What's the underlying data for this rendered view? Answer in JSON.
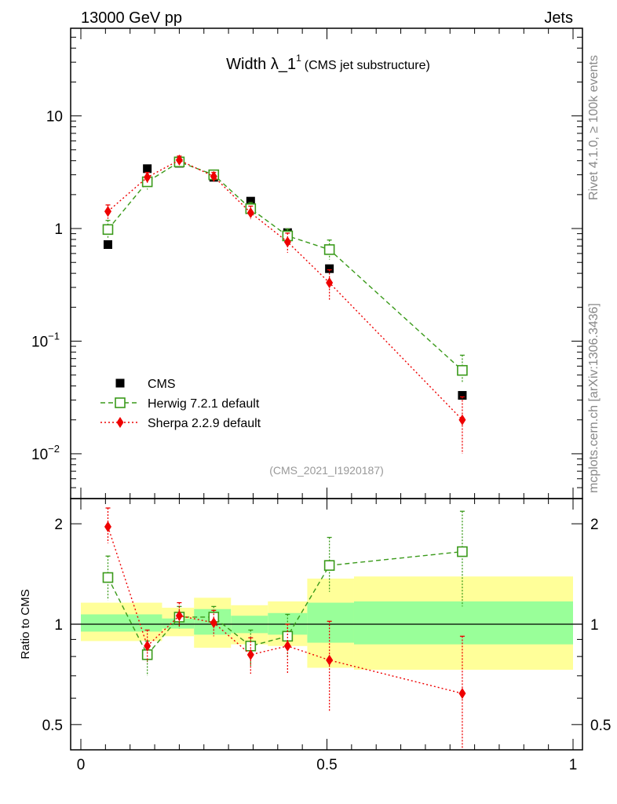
{
  "header": {
    "left": "13000 GeV pp",
    "right": "Jets"
  },
  "side_labels": {
    "rivet": "Rivet 4.1.0, ≥ 100k events",
    "mcplots": "mcplots.cern.ch [arXiv:1306.3436]"
  },
  "colors": {
    "data": "#000000",
    "herwig": "#3a9a1a",
    "sherpa": "#ee0000",
    "band_outer": "#ffff99",
    "band_inner": "#99ff99",
    "watermark": "#999999"
  },
  "chart_data": [
    {
      "type": "scatter",
      "panel": "main",
      "title": "Width λ_1",
      "title_sup": "1",
      "title_suffix": "(CMS jet substructure)",
      "watermark": "(CMS_2021_I1920187)",
      "xlim": [
        0,
        1
      ],
      "ylim": [
        0.004,
        60
      ],
      "yscale": "log",
      "yticks": [
        {
          "value": 10,
          "label": "10",
          "sup": ""
        },
        {
          "value": 1,
          "label": "1",
          "sup": ""
        },
        {
          "value": 0.1,
          "label": "10",
          "sup": "−1"
        },
        {
          "value": 0.01,
          "label": "10",
          "sup": "−2"
        }
      ],
      "legend_position": "left",
      "series": [
        {
          "name": "CMS",
          "style": "data",
          "x": [
            0.055,
            0.135,
            0.2,
            0.27,
            0.345,
            0.42,
            0.505,
            0.775
          ],
          "y": [
            0.72,
            3.4,
            3.8,
            2.85,
            1.75,
            0.92,
            0.44,
            0.033
          ],
          "err_lo": [
            0,
            0,
            0,
            0,
            0,
            0,
            0,
            0
          ],
          "err_hi": [
            0,
            0,
            0,
            0,
            0,
            0,
            0,
            0
          ]
        },
        {
          "name": "Herwig 7.2.1 default",
          "style": "herwig",
          "x": [
            0.055,
            0.135,
            0.2,
            0.27,
            0.345,
            0.42,
            0.505,
            0.775
          ],
          "y": [
            0.98,
            2.6,
            3.9,
            3.0,
            1.5,
            0.86,
            0.65,
            0.055
          ],
          "err_lo": [
            0.16,
            0.38,
            0.32,
            0.25,
            0.2,
            0.13,
            0.12,
            0.012
          ],
          "err_hi": [
            0.2,
            0.32,
            0.3,
            0.22,
            0.2,
            0.13,
            0.14,
            0.02
          ]
        },
        {
          "name": "Sherpa 2.2.9 default",
          "style": "sherpa",
          "x": [
            0.055,
            0.135,
            0.2,
            0.27,
            0.345,
            0.42,
            0.505,
            0.775
          ],
          "y": [
            1.42,
            2.85,
            4.05,
            2.9,
            1.38,
            0.76,
            0.33,
            0.02
          ],
          "err_lo": [
            0.2,
            0.3,
            0.3,
            0.25,
            0.17,
            0.15,
            0.1,
            0.01
          ],
          "err_hi": [
            0.2,
            0.3,
            0.35,
            0.25,
            0.2,
            0.15,
            0.1,
            0.012
          ]
        }
      ]
    },
    {
      "type": "scatter",
      "panel": "ratio",
      "ylabel": "Ratio to CMS",
      "xlabel": "",
      "xlim": [
        0,
        1
      ],
      "ylim": [
        0.42,
        2.38
      ],
      "yscale": "log",
      "yticks": [
        {
          "value": 2,
          "label": "2"
        },
        {
          "value": 1,
          "label": "1"
        },
        {
          "value": 0.5,
          "label": "0.5"
        }
      ],
      "xticks": [
        {
          "value": 0,
          "label": "0"
        },
        {
          "value": 0.5,
          "label": "0.5"
        },
        {
          "value": 1,
          "label": "1"
        }
      ],
      "reference_line": 1,
      "bands": [
        {
          "x_lo": 0.0,
          "x_hi": 0.165,
          "outer": [
            0.89,
            1.16
          ],
          "inner": [
            0.95,
            1.07
          ]
        },
        {
          "x_lo": 0.165,
          "x_hi": 0.23,
          "outer": [
            0.92,
            1.12
          ],
          "inner": [
            0.97,
            1.04
          ]
        },
        {
          "x_lo": 0.23,
          "x_hi": 0.305,
          "outer": [
            0.85,
            1.2
          ],
          "inner": [
            0.93,
            1.11
          ]
        },
        {
          "x_lo": 0.305,
          "x_hi": 0.38,
          "outer": [
            0.87,
            1.14
          ],
          "inner": [
            0.94,
            1.06
          ]
        },
        {
          "x_lo": 0.38,
          "x_hi": 0.46,
          "outer": [
            0.86,
            1.17
          ],
          "inner": [
            0.93,
            1.08
          ]
        },
        {
          "x_lo": 0.46,
          "x_hi": 0.555,
          "outer": [
            0.74,
            1.37
          ],
          "inner": [
            0.88,
            1.16
          ]
        },
        {
          "x_lo": 0.555,
          "x_hi": 1.0,
          "outer": [
            0.73,
            1.39
          ],
          "inner": [
            0.87,
            1.17
          ]
        }
      ],
      "series": [
        {
          "name": "Herwig 7.2.1 default",
          "style": "herwig",
          "x": [
            0.055,
            0.135,
            0.2,
            0.27,
            0.345,
            0.42,
            0.505,
            0.775
          ],
          "y": [
            1.38,
            0.81,
            1.05,
            1.05,
            0.86,
            0.92,
            1.5,
            1.65
          ],
          "err_lo": [
            0.2,
            0.11,
            0.08,
            0.08,
            0.11,
            0.13,
            0.25,
            0.52
          ],
          "err_hi": [
            0.22,
            0.08,
            0.08,
            0.08,
            0.1,
            0.15,
            0.32,
            0.53
          ]
        },
        {
          "name": "Sherpa 2.2.9 default",
          "style": "sherpa",
          "x": [
            0.055,
            0.135,
            0.2,
            0.27,
            0.345,
            0.42,
            0.505,
            0.775
          ],
          "y": [
            1.96,
            0.86,
            1.06,
            1.01,
            0.81,
            0.86,
            0.78,
            0.62
          ],
          "err_lo": [
            0.21,
            0.09,
            0.08,
            0.09,
            0.1,
            0.15,
            0.23,
            0.2
          ],
          "err_hi": [
            0.27,
            0.1,
            0.1,
            0.09,
            0.1,
            0.14,
            0.24,
            0.3
          ]
        }
      ]
    }
  ]
}
